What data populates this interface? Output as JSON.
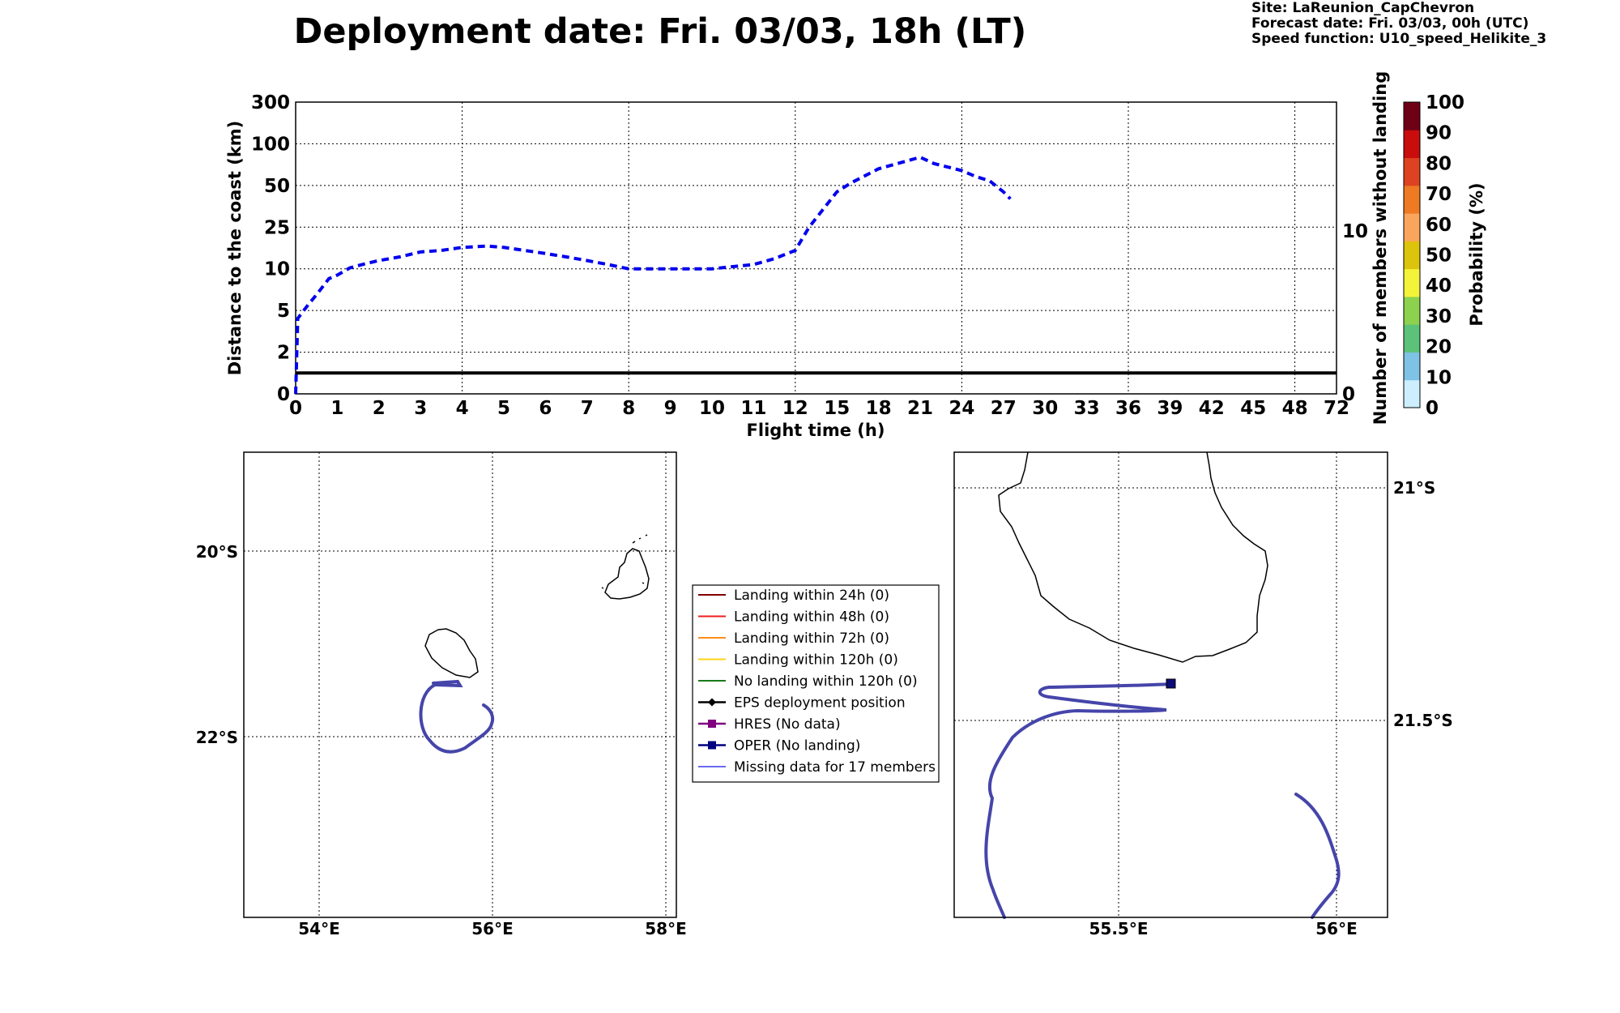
{
  "title": "Deployment date: Fri. 03/03, 18h (LT)",
  "info": {
    "site": "Site: LaReunion_CapChevron",
    "forecast": "Forecast date: Fri. 03/03, 00h (UTC)",
    "speed": "Speed function: U10_speed_Helikite_3"
  },
  "colorbar": {
    "label": "Probability (%)",
    "ticks": [
      "0",
      "10",
      "20",
      "30",
      "40",
      "50",
      "60",
      "70",
      "80",
      "90",
      "100"
    ],
    "colors": [
      "#cdeefd",
      "#7ec2e5",
      "#5cc279",
      "#8cd24e",
      "#f4f33a",
      "#ddc40c",
      "#f9a55b",
      "#ee7a23",
      "#dd4320",
      "#c90c0c",
      "#6f0117"
    ]
  },
  "chart_data": {
    "type": "line",
    "xlabel": "Flight time (h)",
    "ylabel": "Distance to the coast (km)",
    "y2label": "Number of members without landing",
    "x_ticks": [
      "0",
      "1",
      "2",
      "3",
      "4",
      "5",
      "6",
      "7",
      "8",
      "9",
      "10",
      "11",
      "12",
      "15",
      "18",
      "21",
      "24",
      "27",
      "30",
      "33",
      "36",
      "39",
      "42",
      "45",
      "48",
      "72"
    ],
    "y_ticks": [
      "0",
      "2",
      "5",
      "10",
      "25",
      "50",
      "100",
      "300"
    ],
    "y2_ticks": [
      "0",
      "10"
    ],
    "grid": true,
    "series": [
      {
        "style": "dashed",
        "color": "#0000ee",
        "points": [
          [
            0,
            0
          ],
          [
            0.05,
            4.2
          ],
          [
            0.3,
            5.5
          ],
          [
            0.5,
            6.5
          ],
          [
            0.8,
            8.5
          ],
          [
            1,
            9
          ],
          [
            1.3,
            10.2
          ],
          [
            1.6,
            11
          ],
          [
            2,
            12
          ],
          [
            2.5,
            13
          ],
          [
            3,
            14.5
          ],
          [
            3.5,
            15
          ],
          [
            4,
            16
          ],
          [
            4.6,
            16.5
          ],
          [
            5,
            16
          ],
          [
            5.5,
            15
          ],
          [
            6,
            14
          ],
          [
            6.5,
            13
          ],
          [
            7,
            12
          ],
          [
            7.5,
            11
          ],
          [
            8,
            10
          ],
          [
            8.5,
            10
          ],
          [
            9,
            10
          ],
          [
            9.5,
            10
          ],
          [
            10,
            10
          ],
          [
            10.5,
            10.5
          ],
          [
            11,
            11
          ],
          [
            11.5,
            12.5
          ],
          [
            12,
            15
          ],
          [
            13,
            25
          ],
          [
            15,
            45
          ],
          [
            16,
            52
          ],
          [
            18,
            66
          ],
          [
            21,
            80
          ],
          [
            22,
            72
          ],
          [
            24,
            64
          ],
          [
            25,
            58
          ],
          [
            26,
            54
          ],
          [
            27,
            45
          ],
          [
            27.5,
            40
          ]
        ]
      },
      {
        "style": "solid",
        "color": "#000000",
        "points": [
          [
            0,
            1
          ],
          [
            72,
            1
          ]
        ]
      }
    ]
  },
  "maps": {
    "left": {
      "x_ticks": [
        "54°E",
        "56°E",
        "58°E"
      ],
      "y_ticks": [
        "20°S",
        "22°S"
      ]
    },
    "right": {
      "x_ticks": [
        "55.5°E",
        "56°E"
      ],
      "y_ticks": [
        "21°S",
        "21.5°S"
      ]
    }
  },
  "legend": [
    {
      "label": "Landing within 24h (0)",
      "color": "#800000",
      "marker": "none"
    },
    {
      "label": "Landing within 48h (0)",
      "color": "#ee1c1c",
      "marker": "none"
    },
    {
      "label": "Landing within 72h (0)",
      "color": "#ff8c1a",
      "marker": "none"
    },
    {
      "label": "Landing within 120h (0)",
      "color": "#ffd21a",
      "marker": "none"
    },
    {
      "label": "No landing within 120h (0)",
      "color": "#1a7a1a",
      "marker": "none"
    },
    {
      "label": "EPS deployment position",
      "color": "#000000",
      "marker": "diamond"
    },
    {
      "label": "HRES (No data)",
      "color": "#800080",
      "marker": "square"
    },
    {
      "label": "OPER (No landing)",
      "color": "#000080",
      "marker": "square"
    },
    {
      "label": "Missing data for 17 members",
      "color": "#6a6af0",
      "marker": "none"
    }
  ]
}
